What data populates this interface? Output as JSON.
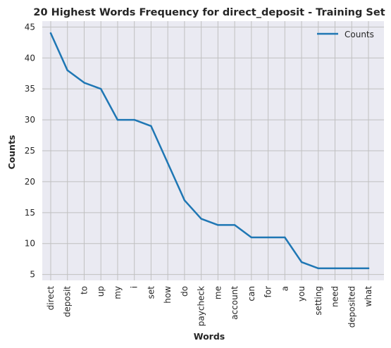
{
  "chart_data": {
    "type": "line",
    "title": "20 Highest Words Frequency for direct_deposit - Training Set",
    "xlabel": "Words",
    "ylabel": "Counts",
    "categories": [
      "direct",
      "deposit",
      "to",
      "up",
      "my",
      "i",
      "set",
      "how",
      "do",
      "paycheck",
      "me",
      "account",
      "can",
      "for",
      "a",
      "you",
      "setting",
      "need",
      "deposited",
      "what"
    ],
    "series": [
      {
        "name": "Counts",
        "values": [
          44,
          38,
          36,
          35,
          30,
          30,
          29,
          23,
          17,
          14,
          13,
          13,
          11,
          11,
          11,
          7,
          6,
          6,
          6,
          6
        ]
      }
    ],
    "ylim": [
      4.05,
      45.95
    ],
    "yticks": [
      5,
      10,
      15,
      20,
      25,
      30,
      35,
      40,
      45
    ],
    "grid": true,
    "legend": "top-right",
    "colors": {
      "line": "#1f77b4",
      "background": "#eaeaf2",
      "grid": "#c0c0c0"
    }
  }
}
